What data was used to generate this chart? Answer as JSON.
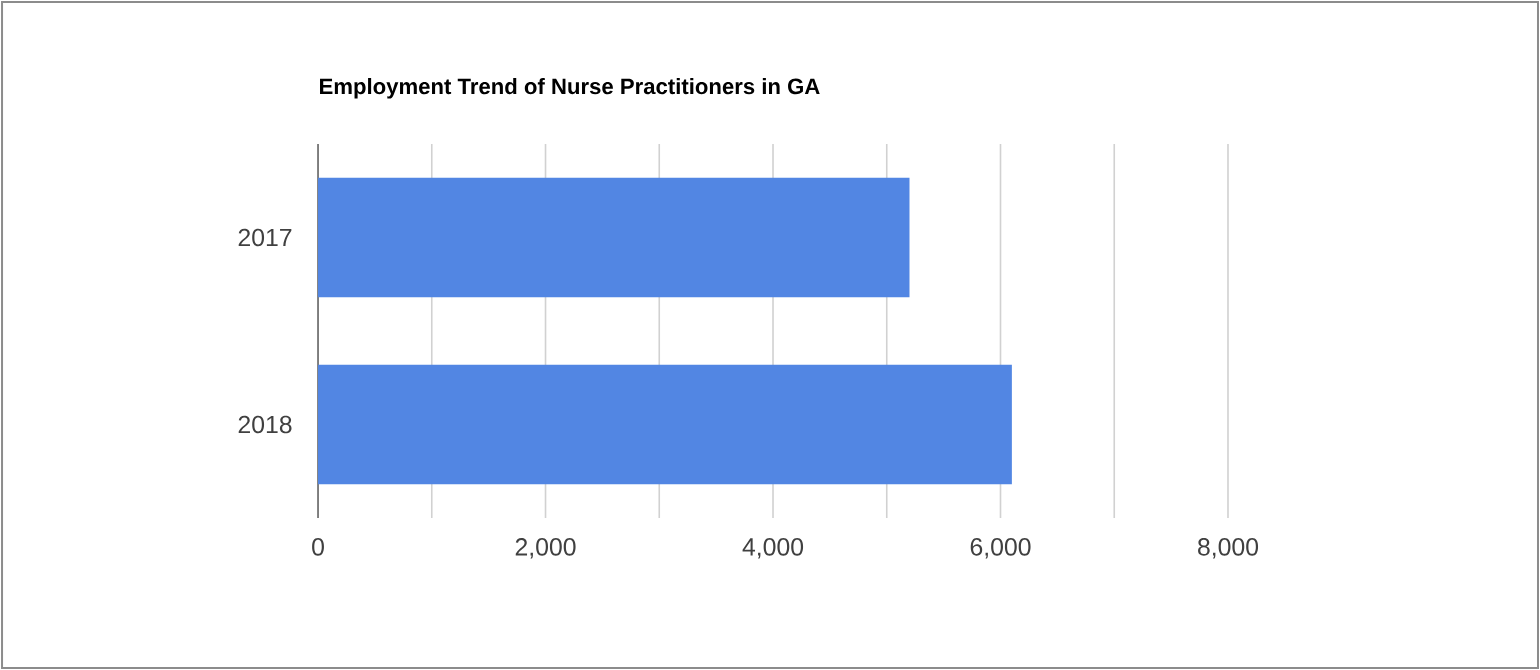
{
  "chart_data": {
    "type": "bar",
    "orientation": "horizontal",
    "title": "Employment Trend of Nurse Practitioners in GA",
    "categories": [
      "2017",
      "2018"
    ],
    "values": [
      5200,
      6100
    ],
    "color": "#5286e3",
    "xlim": [
      0,
      8000
    ],
    "xticks": [
      0,
      {
        "value": 1000,
        "label": null
      },
      {
        "value": 2000,
        "label": "2,000"
      },
      {
        "value": 3000,
        "label": null
      },
      {
        "value": 4000,
        "label": "4,000"
      },
      {
        "value": 5000,
        "label": null
      },
      {
        "value": 6000,
        "label": "6,000"
      },
      {
        "value": 7000,
        "label": null
      },
      {
        "value": 8000,
        "label": "8,000"
      }
    ],
    "grid": "x"
  }
}
